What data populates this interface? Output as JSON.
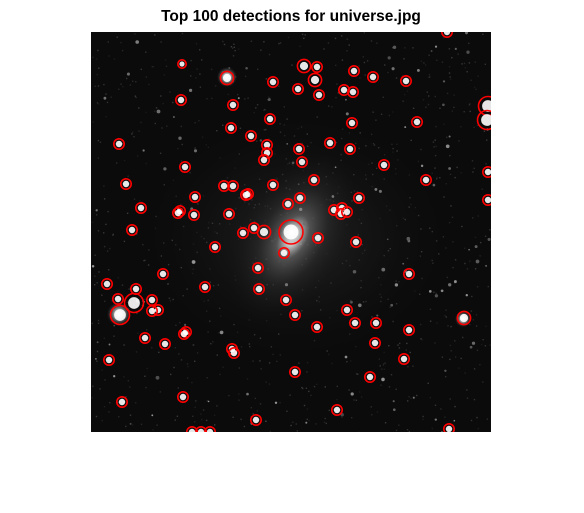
{
  "figure": {
    "title": "Top 100 detections for universe.jpg",
    "background_color": "#ffffff"
  },
  "image": {
    "description_icon": "star-field-image",
    "background_color": "#0a0a0a"
  },
  "marker": {
    "circle_color": "#ff0000",
    "center_color": "#ffffff"
  }
}
